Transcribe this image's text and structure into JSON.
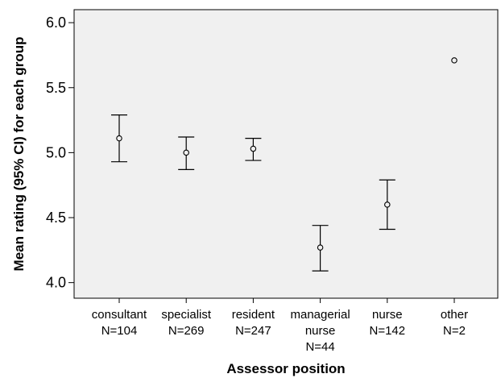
{
  "chart_data": {
    "type": "scatter",
    "xlabel": "Assessor position",
    "ylabel": "Mean rating (95% CI) for each group",
    "ylim": [
      3.88,
      6.1
    ],
    "yticks": [
      "4.0",
      "4.5",
      "5.0",
      "5.5",
      "6.0"
    ],
    "grid": false,
    "colors": {
      "plot_bg": "#f0f0f0",
      "frame": "#000000",
      "marker": "#000000"
    },
    "categories": [
      {
        "label_lines": [
          "consultant",
          "N=104"
        ]
      },
      {
        "label_lines": [
          "specialist",
          "N=269"
        ]
      },
      {
        "label_lines": [
          "resident",
          "N=247"
        ]
      },
      {
        "label_lines": [
          "managerial",
          "nurse",
          "N=44"
        ]
      },
      {
        "label_lines": [
          "nurse",
          "N=142"
        ]
      },
      {
        "label_lines": [
          "other",
          "N=2"
        ]
      }
    ],
    "series": [
      {
        "mean": [
          5.11,
          5.0,
          5.03,
          4.27,
          4.6,
          5.71
        ],
        "ci_low": [
          4.93,
          4.87,
          4.94,
          4.09,
          4.41,
          null
        ],
        "ci_high": [
          5.29,
          5.12,
          5.11,
          4.44,
          4.79,
          null
        ]
      }
    ]
  }
}
